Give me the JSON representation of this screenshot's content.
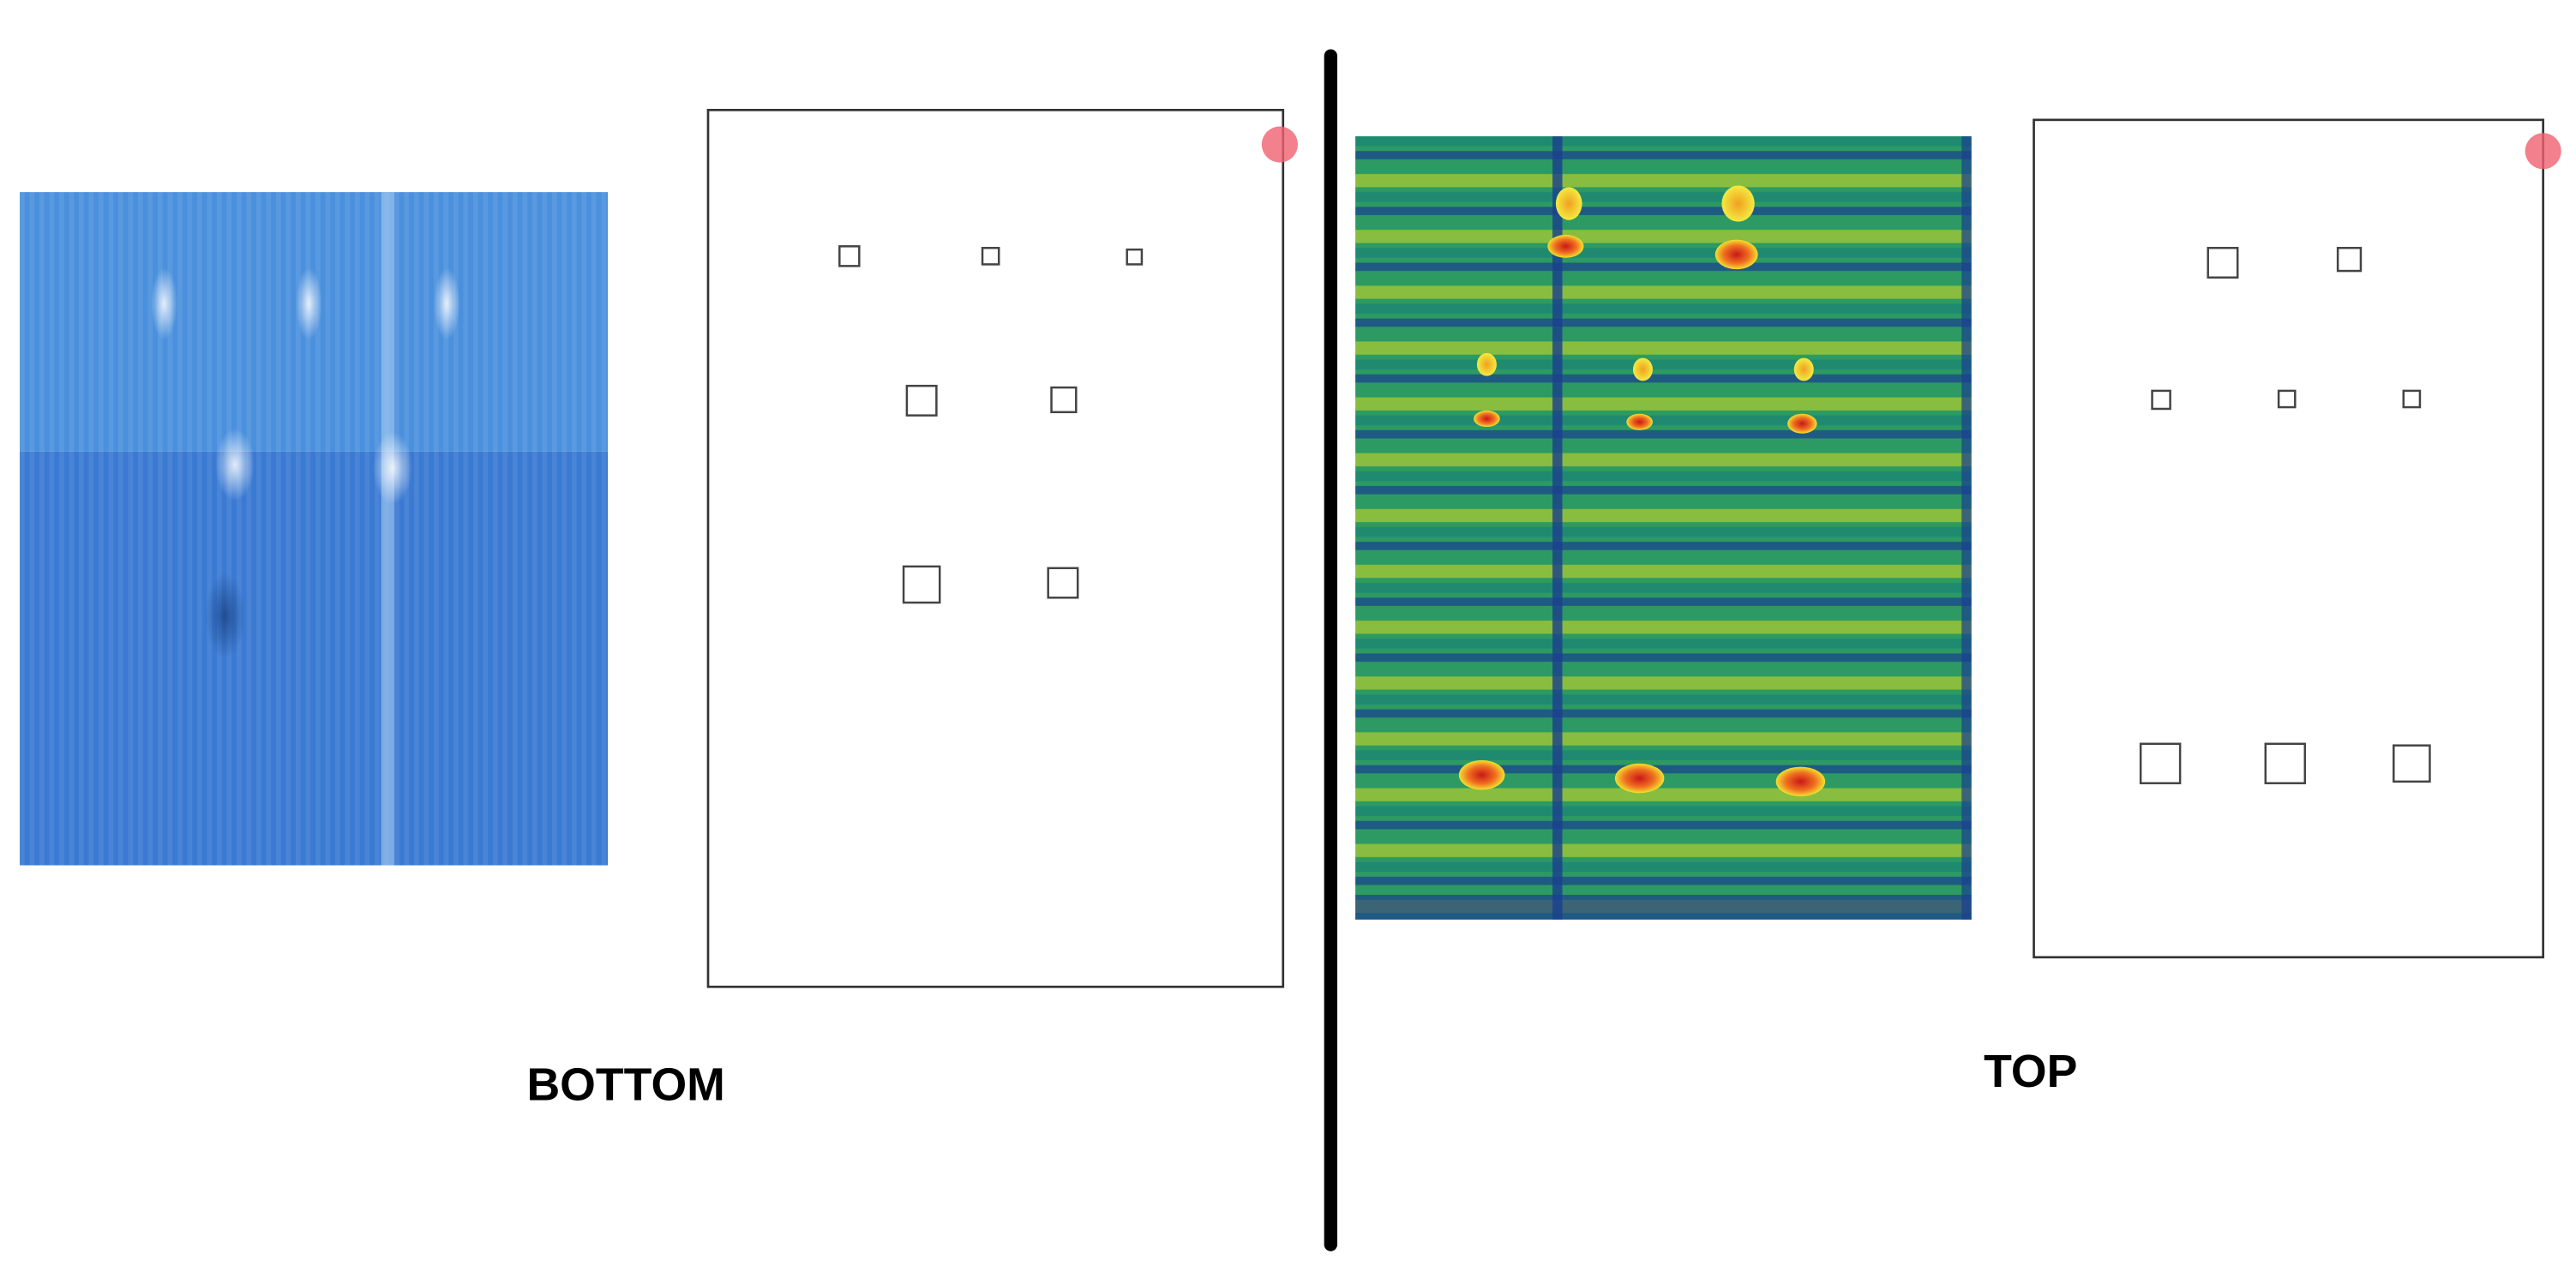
{
  "labels": {
    "bottom": "BOTTOM",
    "top": "TOP"
  }
}
